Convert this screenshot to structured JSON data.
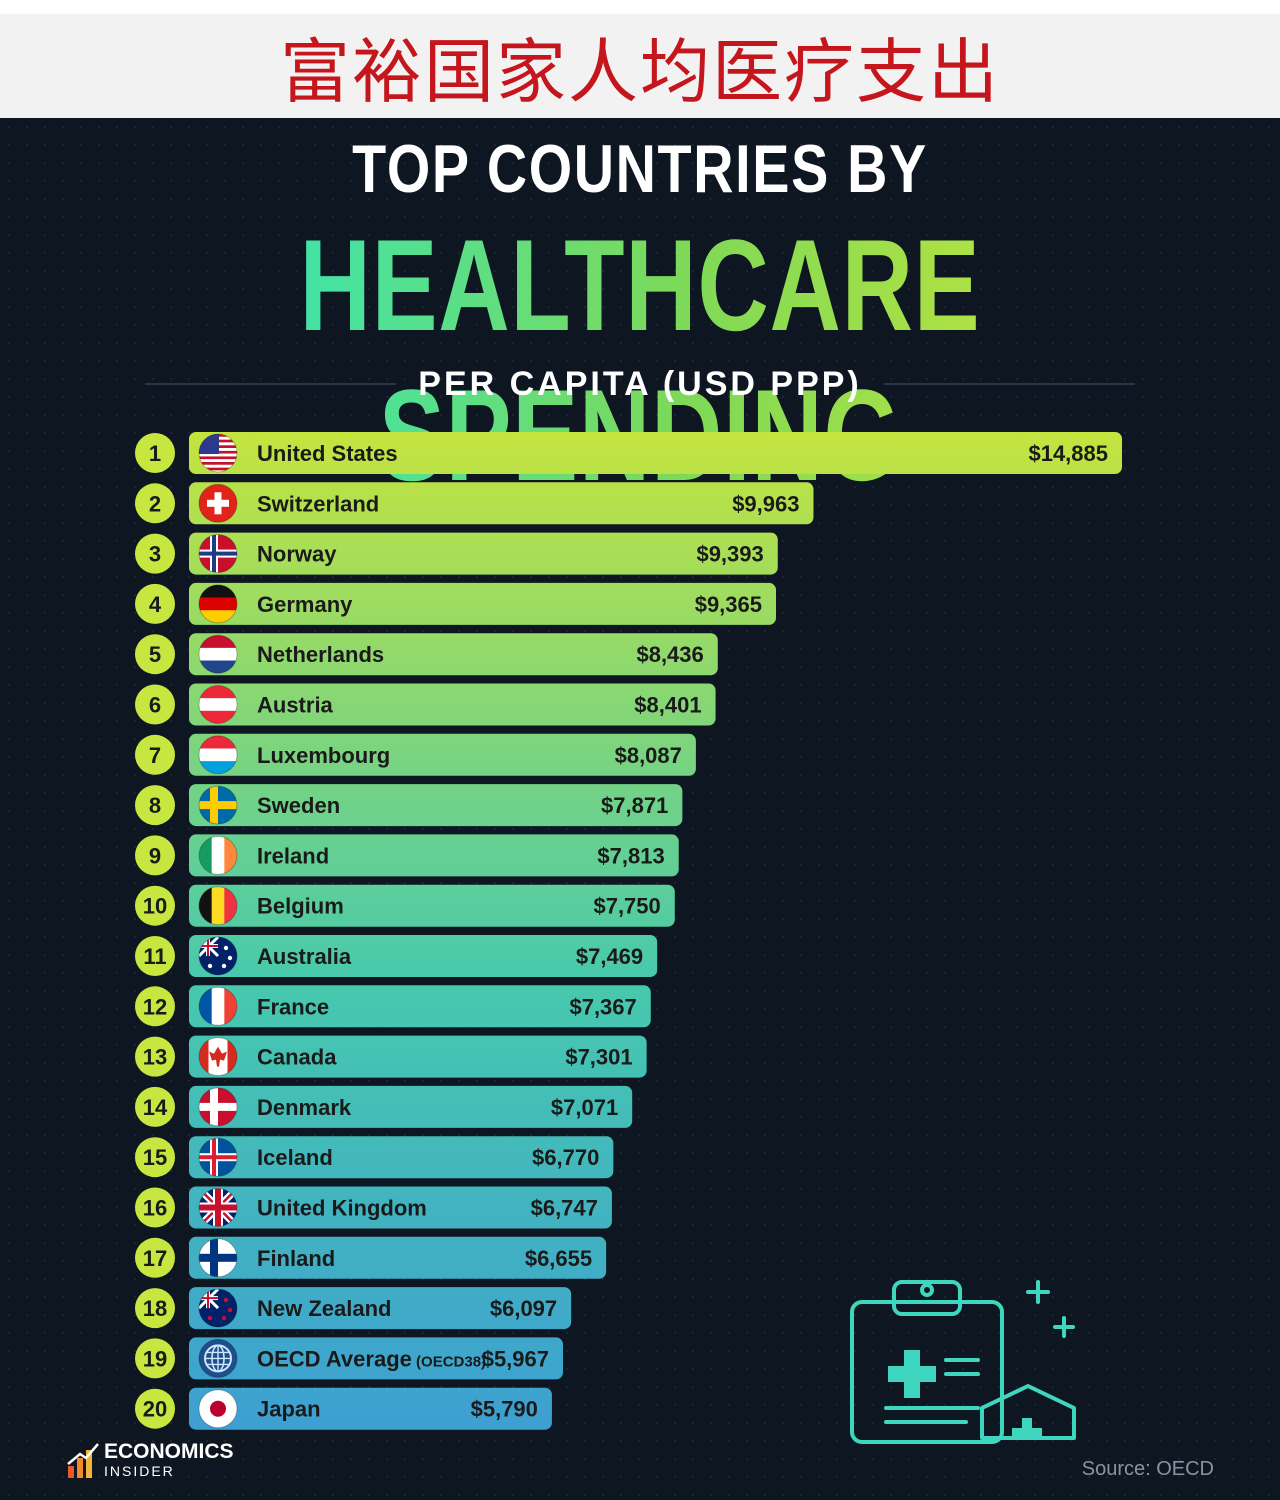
{
  "banner": {
    "title_cn": "富裕国家人均医疗支出"
  },
  "header": {
    "title_line1": "TOP COUNTRIES BY",
    "title_line2": "HEALTHCARE SPENDING",
    "subtitle": "PER CAPITA (USD PPP)"
  },
  "footer": {
    "brand_name": "ECONOMICS",
    "brand_sub": "INSIDER",
    "source": "Source: OECD"
  },
  "colors": {
    "bar_top": "#c4e43e",
    "bar_mid": "#47c9ad",
    "bar_bottom": "#3d9fd2",
    "rank_badge": "#c8e640",
    "text_dark": "#1a1a1a"
  },
  "chart_data": {
    "type": "bar",
    "orientation": "horizontal",
    "title": "TOP COUNTRIES BY HEALTHCARE SPENDING",
    "subtitle": "PER CAPITA (USD PPP)",
    "xlim": [
      0,
      14885
    ],
    "grid": false,
    "categories": [
      {
        "rank": "1",
        "name": "United States",
        "note": "",
        "value": 14885,
        "label": "$14,885",
        "flag": "us-flag-icon"
      },
      {
        "rank": "2",
        "name": "Switzerland",
        "note": "",
        "value": 9963,
        "label": "$9,963",
        "flag": "switzerland-flag-icon"
      },
      {
        "rank": "3",
        "name": "Norway",
        "note": "",
        "value": 9393,
        "label": "$9,393",
        "flag": "norway-flag-icon"
      },
      {
        "rank": "4",
        "name": "Germany",
        "note": "",
        "value": 9365,
        "label": "$9,365",
        "flag": "germany-flag-icon"
      },
      {
        "rank": "5",
        "name": "Netherlands",
        "note": "",
        "value": 8436,
        "label": "$8,436",
        "flag": "netherlands-flag-icon"
      },
      {
        "rank": "6",
        "name": "Austria",
        "note": "",
        "value": 8401,
        "label": "$8,401",
        "flag": "austria-flag-icon"
      },
      {
        "rank": "7",
        "name": "Luxembourg",
        "note": "",
        "value": 8087,
        "label": "$8,087",
        "flag": "luxembourg-flag-icon"
      },
      {
        "rank": "8",
        "name": "Sweden",
        "note": "",
        "value": 7871,
        "label": "$7,871",
        "flag": "sweden-flag-icon"
      },
      {
        "rank": "9",
        "name": "Ireland",
        "note": "",
        "value": 7813,
        "label": "$7,813",
        "flag": "ireland-flag-icon"
      },
      {
        "rank": "10",
        "name": "Belgium",
        "note": "",
        "value": 7750,
        "label": "$7,750",
        "flag": "belgium-flag-icon"
      },
      {
        "rank": "11",
        "name": "Australia",
        "note": "",
        "value": 7469,
        "label": "$7,469",
        "flag": "australia-flag-icon"
      },
      {
        "rank": "12",
        "name": "France",
        "note": "",
        "value": 7367,
        "label": "$7,367",
        "flag": "france-flag-icon"
      },
      {
        "rank": "13",
        "name": "Canada",
        "note": "",
        "value": 7301,
        "label": "$7,301",
        "flag": "canada-flag-icon"
      },
      {
        "rank": "14",
        "name": "Denmark",
        "note": "",
        "value": 7071,
        "label": "$7,071",
        "flag": "denmark-flag-icon"
      },
      {
        "rank": "15",
        "name": "Iceland",
        "note": "",
        "value": 6770,
        "label": "$6,770",
        "flag": "iceland-flag-icon"
      },
      {
        "rank": "16",
        "name": "United Kingdom",
        "note": "",
        "value": 6747,
        "label": "$6,747",
        "flag": "uk-flag-icon"
      },
      {
        "rank": "17",
        "name": "Finland",
        "note": "",
        "value": 6655,
        "label": "$6,655",
        "flag": "finland-flag-icon"
      },
      {
        "rank": "18",
        "name": "New Zealand",
        "note": "",
        "value": 6097,
        "label": "$6,097",
        "flag": "new-zealand-flag-icon"
      },
      {
        "rank": "19",
        "name": "OECD Average",
        "note": "(OECD38)",
        "value": 5967,
        "label": "$5,967",
        "flag": "globe-icon"
      },
      {
        "rank": "20",
        "name": "Japan",
        "note": "",
        "value": 5790,
        "label": "$5,790",
        "flag": "japan-flag-icon"
      }
    ]
  },
  "decoration": {
    "icon": "medical-clipboard-icon",
    "icon2": "medical-shield-icon"
  }
}
